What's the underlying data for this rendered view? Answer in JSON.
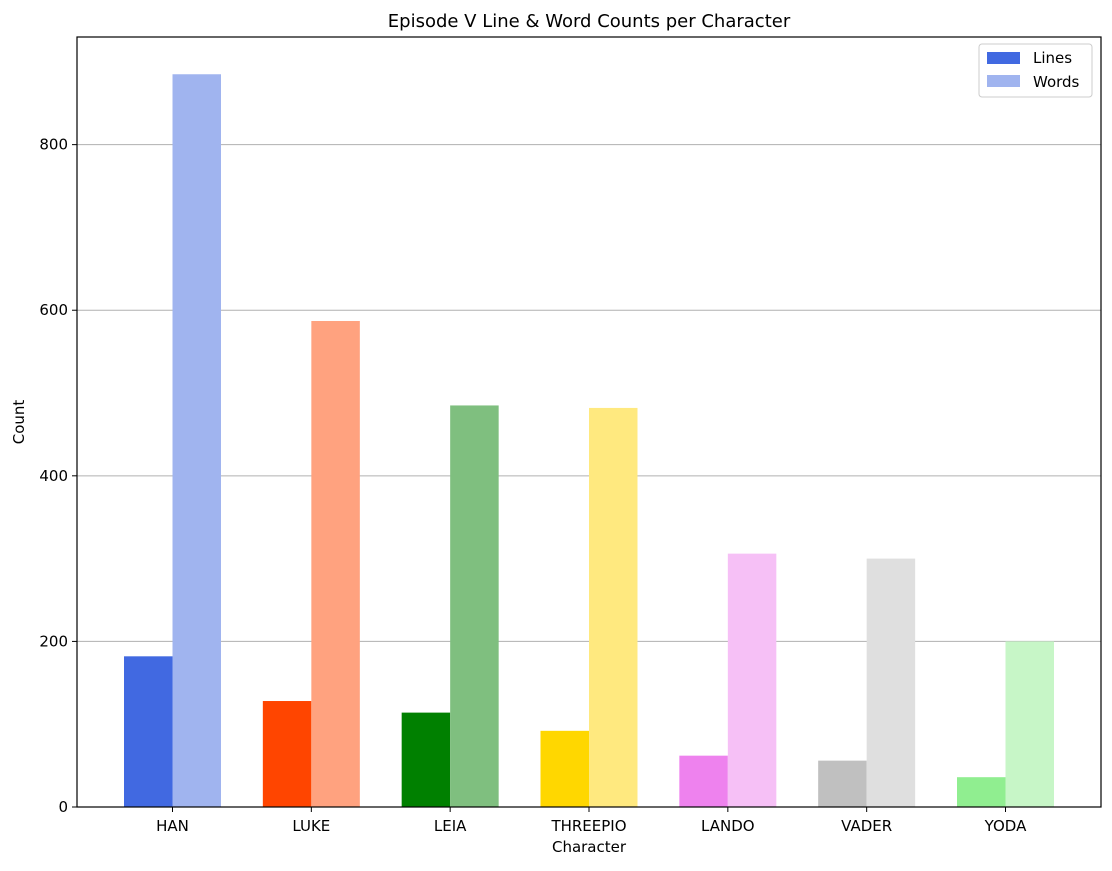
{
  "chart_data": {
    "type": "bar",
    "title": "Episode V Line & Word Counts per Character",
    "xlabel": "Character",
    "ylabel": "Count",
    "categories": [
      "HAN",
      "LUKE",
      "LEIA",
      "THREEPIO",
      "LANDO",
      "VADER",
      "YODA"
    ],
    "series": [
      {
        "name": "Lines",
        "values": [
          182,
          128,
          114,
          92,
          62,
          56,
          36
        ],
        "colors": [
          "#4169e1",
          "#ff4500",
          "#008000",
          "#ffd700",
          "#ee82ee",
          "#c0c0c0",
          "#90ee90"
        ]
      },
      {
        "name": "Words",
        "values": [
          885,
          587,
          485,
          482,
          306,
          300,
          200
        ],
        "colors": [
          "#a0b4ef",
          "#ffa27f",
          "#7fbf7f",
          "#ffe97f",
          "#f6c0f6",
          "#dfdfdf",
          "#c7f6c7"
        ]
      }
    ],
    "ylim": [
      0,
      930
    ],
    "yticks": [
      0,
      200,
      400,
      600,
      800
    ],
    "grid": "y",
    "legend": "top-right"
  }
}
